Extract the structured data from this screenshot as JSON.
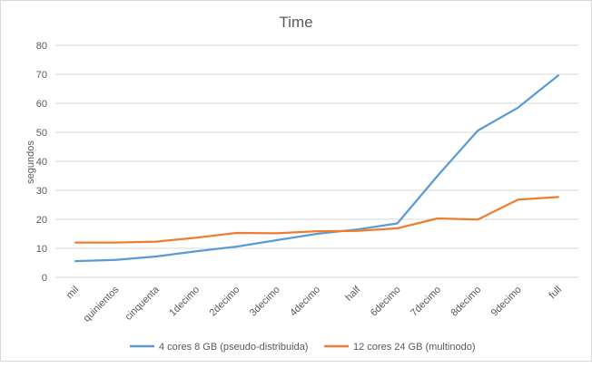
{
  "chart_data": {
    "type": "line",
    "title": "Time",
    "xlabel": "",
    "ylabel": "segundos",
    "ylim": [
      0,
      80
    ],
    "yticks": [
      0,
      10,
      20,
      30,
      40,
      50,
      60,
      70,
      80
    ],
    "grid": true,
    "legend_position": "bottom",
    "categories": [
      "mil",
      "quinientos",
      "cinquenta",
      "1decimo",
      "2decimo",
      "3decimo",
      "4decimo",
      "half",
      "6decimo",
      "7decimo",
      "8decimo",
      "9decimo",
      "full"
    ],
    "series": [
      {
        "name": "4 cores 8 GB (pseudo-distribuida)",
        "color": "#5b9bd5",
        "values": [
          5.6,
          6.0,
          7.2,
          9.0,
          10.6,
          12.8,
          15.0,
          16.5,
          18.6,
          35.0,
          50.6,
          58.5,
          69.6
        ]
      },
      {
        "name": "12 cores 24 GB (multinodo)",
        "color": "#ed7d31",
        "values": [
          12.0,
          12.0,
          12.3,
          13.7,
          15.3,
          15.2,
          15.9,
          16.0,
          16.9,
          20.3,
          19.9,
          26.8,
          27.7
        ]
      }
    ]
  }
}
